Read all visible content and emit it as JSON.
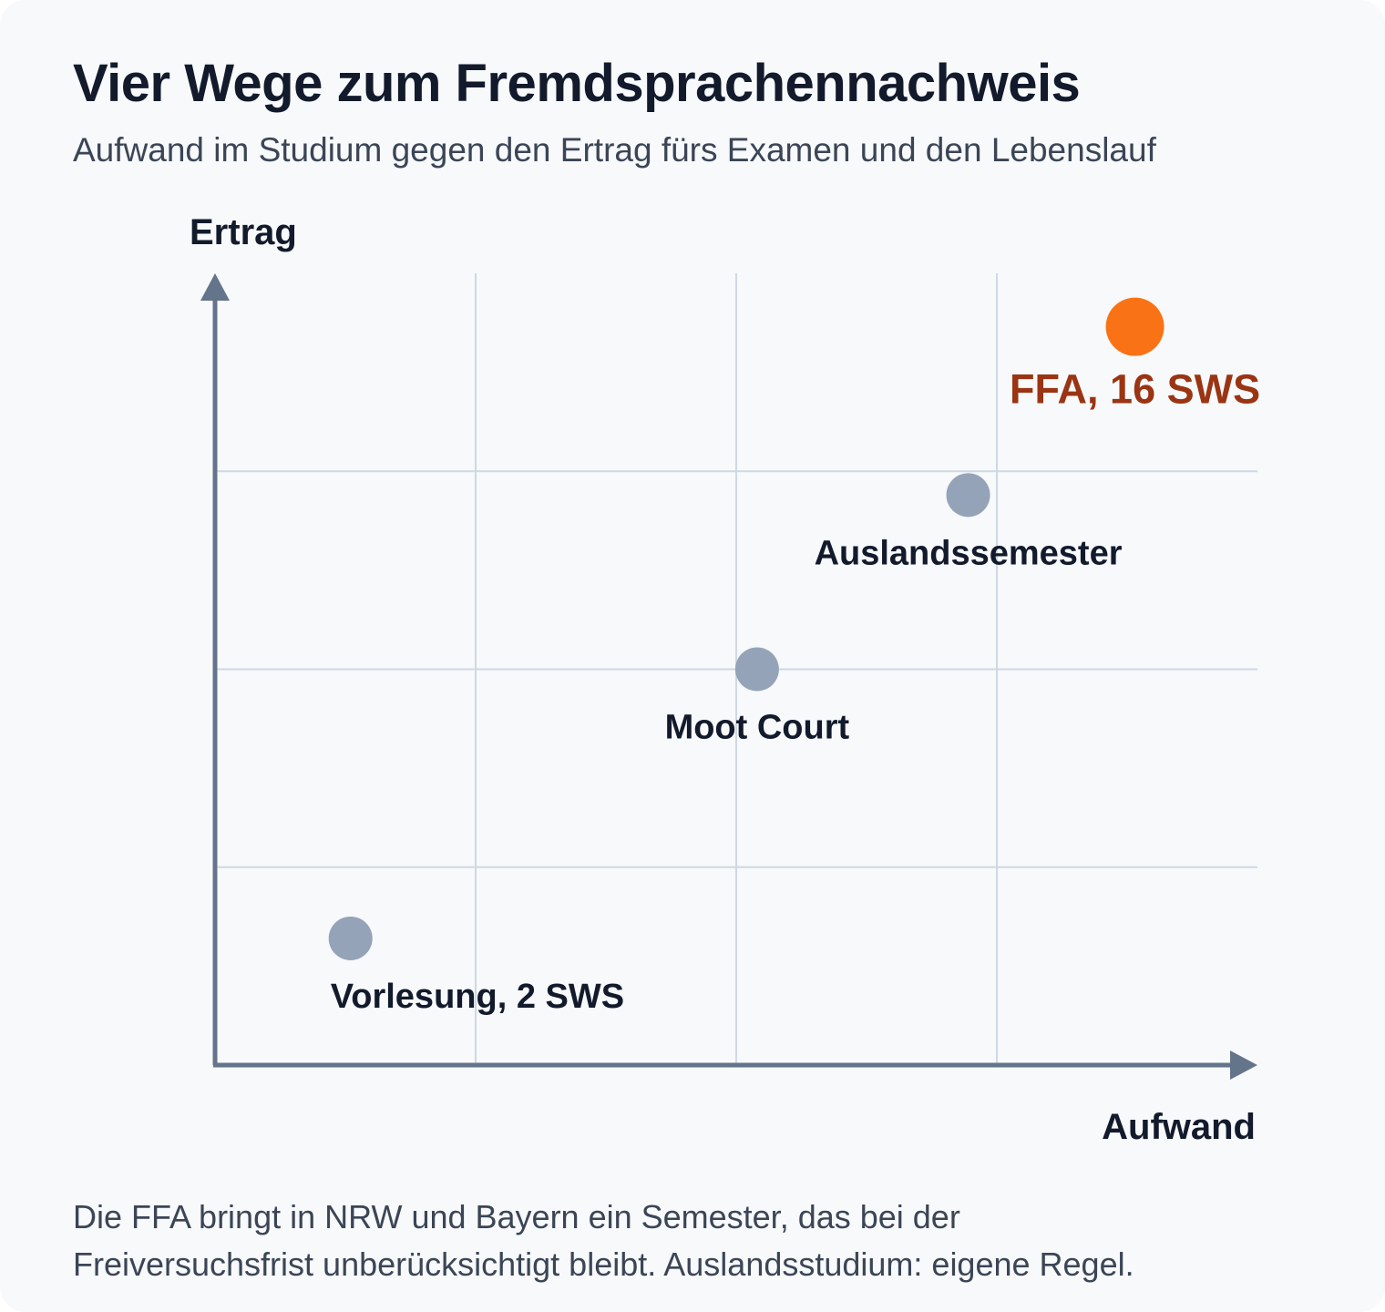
{
  "header": {
    "title": "Vier Wege zum Fremdsprachennachweis",
    "subtitle": "Aufwand im Studium gegen den Ertrag fürs Examen und den Lebenslauf"
  },
  "chart_data": {
    "type": "scatter",
    "title": "Vier Wege zum Fremdsprachennachweis",
    "subtitle": "Aufwand im Studium gegen den Ertrag fürs Examen und den Lebenslauf",
    "xlabel": "Aufwand",
    "ylabel": "Ertrag",
    "xlim": [
      0,
      4
    ],
    "ylim": [
      0,
      4
    ],
    "grid": true,
    "tick_labels_shown": false,
    "points": [
      {
        "label": "Vorlesung, 2 SWS",
        "x": 0.52,
        "y": 0.64,
        "highlight": false,
        "color": "#94a3b8"
      },
      {
        "label": "Moot Court",
        "x": 2.08,
        "y": 2.0,
        "highlight": false,
        "color": "#94a3b8"
      },
      {
        "label": "Auslandssemester",
        "x": 2.89,
        "y": 2.88,
        "highlight": false,
        "color": "#94a3b8"
      },
      {
        "label": "FFA, 16 SWS",
        "x": 3.53,
        "y": 3.73,
        "highlight": true,
        "color": "#f97316"
      }
    ],
    "colors": {
      "axis": "#64748b",
      "grid": "#cfd8e3",
      "point": "#94a3b8",
      "highlight_point": "#f97316",
      "highlight_label": "#9a3412"
    }
  },
  "footnote": {
    "line1": "Die FFA bringt in NRW und Bayern ein Semester, das bei der",
    "line2": "Freiversuchsfrist unberücksichtigt bleibt. Auslandsstudium: eigene Regel."
  }
}
